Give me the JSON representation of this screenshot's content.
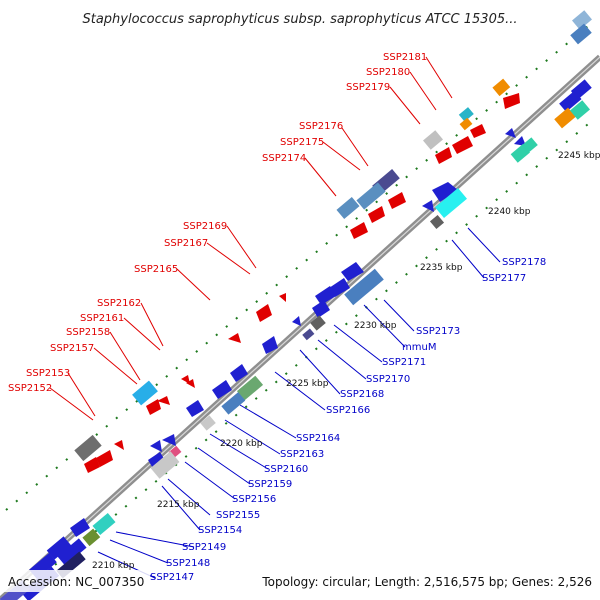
{
  "title": "Staphylococcus saprophyticus subsp. saprophyticus ATCC 15305...",
  "footer": {
    "accession": "Accession: NC_007350",
    "topology": "Topology: circular; Length: 2,516,575 bp; Genes: 2,526"
  },
  "colors": {
    "backbone": "#8f8f8f",
    "tick": "#1f7a1f",
    "red_label": "#e00000",
    "blue_label": "#0000c8"
  },
  "scale_labels": [
    "2210 kbp",
    "2215 kbp",
    "2220 kbp",
    "2225 kbp",
    "2230 kbp",
    "2235 kbp",
    "2240 kbp",
    "2245 kbp"
  ],
  "gene_labels_upper": [
    "SSP2152",
    "SSP2153",
    "SSP2157",
    "SSP2158",
    "SSP2161",
    "SSP2162",
    "SSP2165",
    "SSP2167",
    "SSP2169",
    "SSP2174",
    "SSP2175",
    "SSP2176",
    "SSP2179",
    "SSP2180",
    "SSP2181"
  ],
  "gene_labels_lower": [
    "SSP2147",
    "SSP2148",
    "SSP2149",
    "SSP2154",
    "SSP2155",
    "SSP2156",
    "SSP2159",
    "SSP2160",
    "SSP2163",
    "SSP2164",
    "SSP2166",
    "SSP2168",
    "SSP2170",
    "SSP2171",
    "mmuM",
    "SSP2173",
    "SSP2177",
    "SSP2178"
  ]
}
